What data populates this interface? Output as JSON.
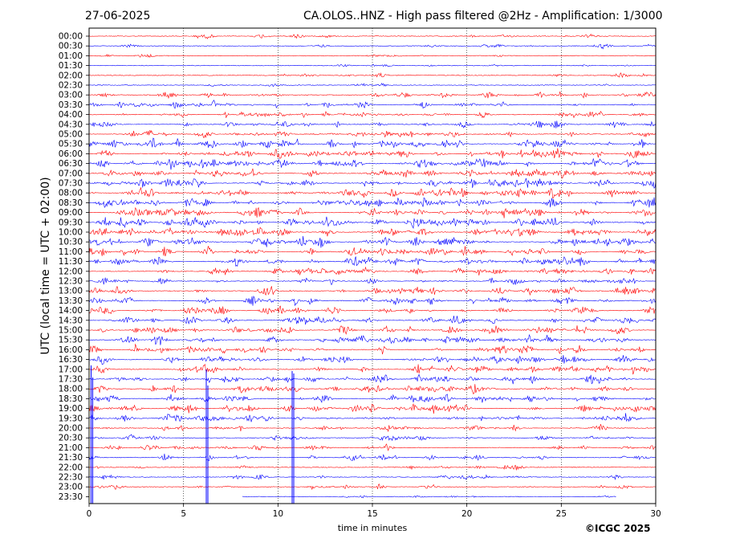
{
  "header": {
    "date": "27-06-2025",
    "title": "CA.OLOS..HNZ - High pass filtered @2Hz - Amplification: 1/3000"
  },
  "footer": {
    "copyright": "©ICGC 2025"
  },
  "chart_data": {
    "type": "line",
    "title": "CA.OLOS..HNZ - High pass filtered @2Hz - Amplification: 1/3000",
    "xlabel": "time in minutes",
    "ylabel": "UTC (local time = UTC + 02:00)",
    "xlim": [
      0,
      30
    ],
    "x_ticks": [
      0,
      5,
      10,
      15,
      20,
      25,
      30
    ],
    "grid": "vertical dotted lines at 5-minute intervals",
    "rows": [
      "00:00",
      "00:30",
      "01:00",
      "01:30",
      "02:00",
      "02:30",
      "03:00",
      "03:30",
      "04:00",
      "04:30",
      "05:00",
      "05:30",
      "06:00",
      "06:30",
      "07:00",
      "07:30",
      "08:00",
      "08:30",
      "09:00",
      "09:30",
      "10:00",
      "10:30",
      "11:00",
      "11:30",
      "12:00",
      "12:30",
      "13:00",
      "13:30",
      "14:00",
      "14:30",
      "15:00",
      "15:30",
      "16:00",
      "16:30",
      "17:00",
      "17:30",
      "18:00",
      "18:30",
      "19:00",
      "19:30",
      "20:00",
      "20:30",
      "21:00",
      "21:30",
      "22:00",
      "22:30",
      "23:00",
      "23:30"
    ],
    "colors": {
      "even_rows": "#ff0000",
      "odd_rows": "#0000ff"
    }
  }
}
